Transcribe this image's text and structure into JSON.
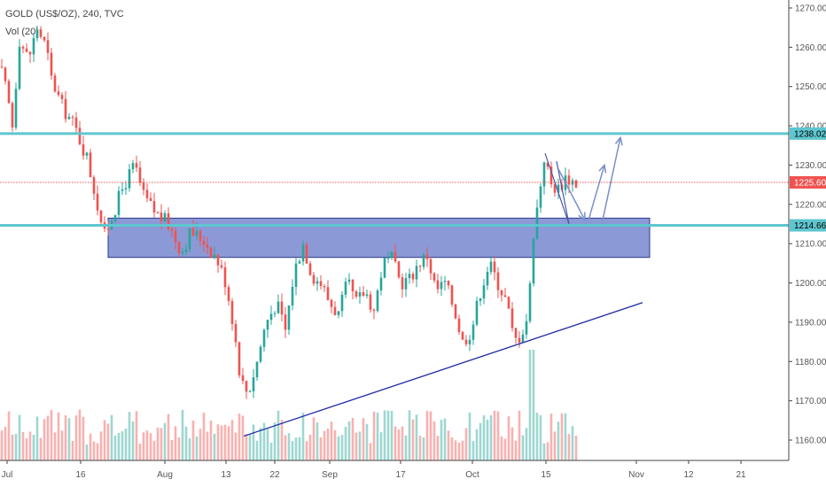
{
  "header": {
    "title": "GOLD (US$/OZ), 240, TVC",
    "volume_label": "Vol (20)"
  },
  "colors": {
    "up": "#26a69a",
    "down": "#ef5350",
    "level_line": "#5ec6cf",
    "zone_fill": "#5b6ec6",
    "trend_line": "#1b2aa5",
    "arrow": "#7a8fc9",
    "price_tag": "#ef5350",
    "level_tag": "#5ec6cf"
  },
  "chart_data": {
    "type": "candlestick",
    "instrument": "GOLD (US$/OZ)",
    "interval": "240",
    "ylim": [
      1153,
      1272
    ],
    "y_ticks": [
      "1270.00",
      "1260.00",
      "1250.00",
      "1240.00",
      "1230.00",
      "1220.00",
      "1210.00",
      "1200.00",
      "1190.00",
      "1180.00",
      "1170.00",
      "1160.00"
    ],
    "x_ticks": [
      "Jul",
      "16",
      "Aug",
      "13",
      "22",
      "Sep",
      "17",
      "Oct",
      "15",
      "Nov",
      "12",
      "21"
    ],
    "levels": [
      {
        "price": 1238.02,
        "label": "1238.02"
      },
      {
        "price": 1214.66,
        "label": "1214.66"
      }
    ],
    "current_price": {
      "price": 1225.6,
      "label": "1225.60"
    },
    "zone": {
      "from": 1206.5,
      "to": 1216.5
    },
    "path_keypoints": [
      [
        0,
        1255
      ],
      [
        8,
        1248
      ],
      [
        14,
        1240
      ],
      [
        22,
        1262
      ],
      [
        32,
        1257
      ],
      [
        42,
        1265
      ],
      [
        52,
        1260
      ],
      [
        58,
        1252
      ],
      [
        70,
        1245
      ],
      [
        84,
        1240
      ],
      [
        98,
        1232
      ],
      [
        108,
        1222
      ],
      [
        118,
        1212
      ],
      [
        128,
        1218
      ],
      [
        140,
        1225
      ],
      [
        152,
        1230
      ],
      [
        162,
        1222
      ],
      [
        175,
        1218
      ],
      [
        190,
        1215
      ],
      [
        205,
        1208
      ],
      [
        215,
        1213
      ],
      [
        230,
        1211
      ],
      [
        245,
        1206
      ],
      [
        255,
        1200
      ],
      [
        263,
        1190
      ],
      [
        272,
        1175
      ],
      [
        280,
        1172
      ],
      [
        290,
        1180
      ],
      [
        300,
        1190
      ],
      [
        312,
        1195
      ],
      [
        322,
        1188
      ],
      [
        332,
        1203
      ],
      [
        342,
        1210
      ],
      [
        352,
        1202
      ],
      [
        362,
        1200
      ],
      [
        372,
        1195
      ],
      [
        382,
        1192
      ],
      [
        392,
        1200
      ],
      [
        402,
        1195
      ],
      [
        412,
        1198
      ],
      [
        422,
        1193
      ],
      [
        432,
        1205
      ],
      [
        442,
        1206
      ],
      [
        452,
        1200
      ],
      [
        462,
        1201
      ],
      [
        472,
        1205
      ],
      [
        482,
        1207
      ],
      [
        492,
        1198
      ],
      [
        502,
        1200
      ],
      [
        512,
        1194
      ],
      [
        522,
        1185
      ],
      [
        532,
        1188
      ],
      [
        542,
        1198
      ],
      [
        552,
        1205
      ],
      [
        562,
        1200
      ],
      [
        572,
        1195
      ],
      [
        580,
        1185
      ],
      [
        588,
        1187
      ],
      [
        596,
        1192
      ],
      [
        602,
        1213
      ],
      [
        608,
        1222
      ],
      [
        614,
        1232
      ],
      [
        622,
        1225
      ],
      [
        630,
        1224
      ],
      [
        638,
        1227
      ],
      [
        646,
        1226
      ],
      [
        652,
        1225
      ]
    ],
    "annotations": {
      "trendline": [
        [
          275,
          1161
        ],
        [
          725,
          1195
        ]
      ],
      "triangle": [
        [
          615,
          1233
        ],
        [
          642,
          1215
        ],
        [
          628,
          1231
        ]
      ],
      "arrows": [
        {
          "points": [
            [
              630,
              1229
            ],
            [
              660,
              1216
            ]
          ]
        },
        {
          "points": [
            [
              664,
              1216
            ],
            [
              682,
              1230
            ]
          ]
        },
        {
          "points": [
            [
              680,
              1216
            ],
            [
              700,
              1237
            ]
          ]
        }
      ]
    }
  }
}
